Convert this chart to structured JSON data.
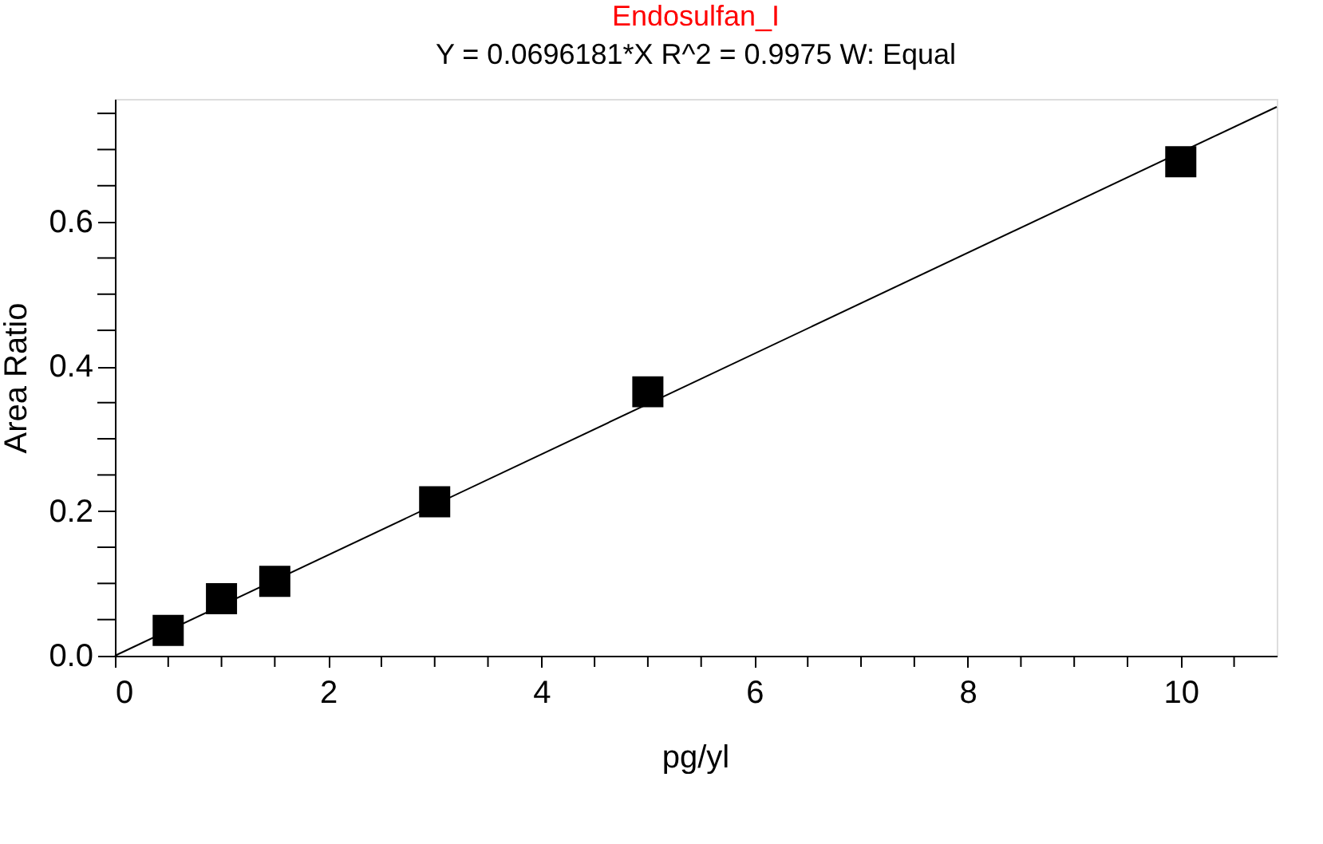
{
  "chart_data": {
    "type": "scatter",
    "title": "Endosulfan_I",
    "subtitle": "Y = 0.0696181*X   R^2 = 0.9975   W: Equal",
    "xlabel": "pg/yl",
    "ylabel": "Area Ratio",
    "xlim": [
      0,
      10.9
    ],
    "ylim": [
      0,
      0.77
    ],
    "xticks": [
      0,
      {
        "value": 0.5,
        "label": null
      },
      {
        "value": 1,
        "label": null
      },
      {
        "value": 1.5,
        "label": null
      },
      2,
      {
        "value": 2.5,
        "label": null
      },
      {
        "value": 3,
        "label": null
      },
      {
        "value": 3.5,
        "label": null
      },
      4,
      {
        "value": 4.5,
        "label": null
      },
      {
        "value": 5,
        "label": null
      },
      {
        "value": 5.5,
        "label": null
      },
      6,
      {
        "value": 6.5,
        "label": null
      },
      {
        "value": 7,
        "label": null
      },
      {
        "value": 7.5,
        "label": null
      },
      8,
      {
        "value": 8.5,
        "label": null
      },
      {
        "value": 9,
        "label": null
      },
      {
        "value": 9.5,
        "label": null
      },
      10,
      {
        "value": 10.5,
        "label": null
      }
    ],
    "yticks": [
      {
        "value": 0,
        "label": "0.0"
      },
      {
        "value": 0.05,
        "label": null
      },
      {
        "value": 0.1,
        "label": null
      },
      {
        "value": 0.15,
        "label": null
      },
      0.2,
      {
        "value": 0.25,
        "label": null
      },
      {
        "value": 0.3,
        "label": null
      },
      {
        "value": 0.35,
        "label": null
      },
      0.4,
      {
        "value": 0.45,
        "label": null
      },
      {
        "value": 0.5,
        "label": null
      },
      {
        "value": 0.55,
        "label": null
      },
      0.6,
      {
        "value": 0.65,
        "label": null
      },
      {
        "value": 0.7,
        "label": null
      },
      {
        "value": 0.75,
        "label": null
      }
    ],
    "series": [
      {
        "type": "line",
        "color": "#000000",
        "line_style": "solid",
        "x": [
          0,
          10.9
        ],
        "values": [
          0,
          0.759
        ]
      },
      {
        "type": "scatter",
        "color": "#000000",
        "marker": "square",
        "x": [
          0.5,
          1,
          1.5,
          3,
          5,
          10
        ],
        "values": [
          0.035,
          0.079,
          0.103,
          0.213,
          0.365,
          0.683
        ]
      }
    ]
  }
}
